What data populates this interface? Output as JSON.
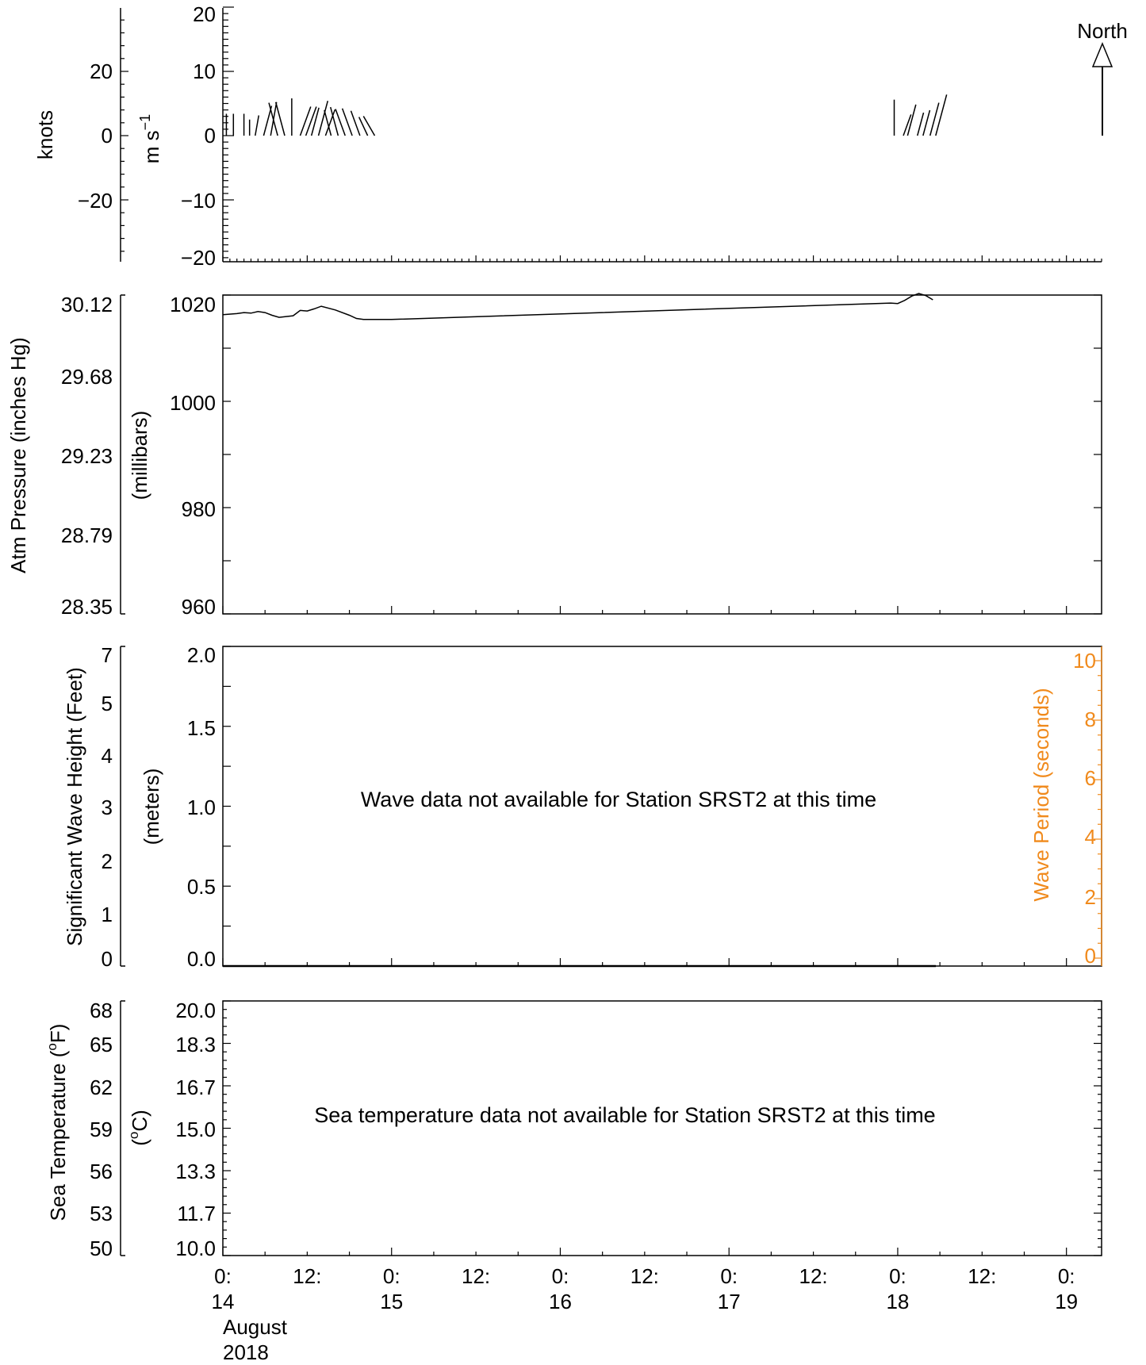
{
  "colors": {
    "wave_period": "#f08a1c",
    "ink": "#000000",
    "background": "#ffffff"
  },
  "time_axis": {
    "tick_labels": [
      {
        "hour": "0:",
        "day": "14"
      },
      {
        "hour": "12:",
        "day": ""
      },
      {
        "hour": "0:",
        "day": "15"
      },
      {
        "hour": "12:",
        "day": ""
      },
      {
        "hour": "0:",
        "day": "16"
      },
      {
        "hour": "12:",
        "day": ""
      },
      {
        "hour": "0:",
        "day": "17"
      },
      {
        "hour": "12:",
        "day": ""
      },
      {
        "hour": "0:",
        "day": "18"
      },
      {
        "hour": "12:",
        "day": ""
      },
      {
        "hour": "0:",
        "day": "19"
      }
    ],
    "month": "August",
    "year": "2018"
  },
  "chart_data": [
    {
      "type": "wind-barbs",
      "ylabel_left": "knots",
      "ylabel_right": "m s",
      "ylabel_right_exp": "−1",
      "yticks_knots": [
        "20",
        "0",
        "−20"
      ],
      "yticks_ms": [
        "20",
        "10",
        "0",
        "−10",
        "−20"
      ],
      "ylim_ms": [
        -20,
        20
      ],
      "xlim_hours": [
        0,
        125
      ],
      "north_label": "North",
      "samples": [
        {
          "t": 0.5,
          "speed": 3.4,
          "dir": 0
        },
        {
          "t": 1.5,
          "speed": 3.4,
          "dir": 0
        },
        {
          "t": 3.0,
          "speed": 3.4,
          "dir": 0
        },
        {
          "t": 3.8,
          "speed": 2.5,
          "dir": 0
        },
        {
          "t": 4.6,
          "speed": 3.2,
          "dir": 10
        },
        {
          "t": 5.8,
          "speed": 4.8,
          "dir": 15
        },
        {
          "t": 6.8,
          "speed": 5.3,
          "dir": 10
        },
        {
          "t": 7.8,
          "speed": 5.3,
          "dir": 345
        },
        {
          "t": 8.8,
          "speed": 5.4,
          "dir": 345
        },
        {
          "t": 9.8,
          "speed": 5.8,
          "dir": 0
        },
        {
          "t": 11.0,
          "speed": 4.8,
          "dir": 20
        },
        {
          "t": 11.8,
          "speed": 4.8,
          "dir": 20
        },
        {
          "t": 12.6,
          "speed": 4.5,
          "dir": 15
        },
        {
          "t": 13.6,
          "speed": 5.6,
          "dir": 15
        },
        {
          "t": 14.6,
          "speed": 4.3,
          "dir": 20
        },
        {
          "t": 15.4,
          "speed": 4.1,
          "dir": 345
        },
        {
          "t": 16.4,
          "speed": 4.6,
          "dir": 345
        },
        {
          "t": 17.4,
          "speed": 4.4,
          "dir": 340
        },
        {
          "t": 18.4,
          "speed": 4.5,
          "dir": 340
        },
        {
          "t": 19.5,
          "speed": 4.1,
          "dir": 340
        },
        {
          "t": 20.6,
          "speed": 3.2,
          "dir": 335
        },
        {
          "t": 21.6,
          "speed": 3.5,
          "dir": 330
        },
        {
          "t": 95.5,
          "speed": 5.6,
          "dir": 0
        },
        {
          "t": 96.8,
          "speed": 3.5,
          "dir": 20
        },
        {
          "t": 97.4,
          "speed": 5.0,
          "dir": 15
        },
        {
          "t": 98.8,
          "speed": 3.7,
          "dir": 15
        },
        {
          "t": 99.6,
          "speed": 4.1,
          "dir": 15
        },
        {
          "t": 100.6,
          "speed": 5.3,
          "dir": 15
        },
        {
          "t": 101.4,
          "speed": 6.6,
          "dir": 15
        }
      ]
    },
    {
      "type": "line",
      "ylabel_left": "Atm Pressure (inches Hg)",
      "ylabel_right": "(millibars)",
      "yticks_inhg": [
        "30.12",
        "29.68",
        "29.23",
        "28.79",
        "28.35"
      ],
      "yticks_mb": [
        "1020",
        "1000",
        "980",
        "960"
      ],
      "ylim_mb": [
        960,
        1020
      ],
      "xlim_hours": [
        0,
        125
      ],
      "x_hours": [
        0,
        2,
        3,
        4,
        5,
        6,
        7,
        8,
        10,
        11,
        12,
        13,
        14,
        16,
        18,
        19,
        20,
        21,
        22,
        23,
        24,
        95,
        96,
        97,
        98,
        99,
        100,
        101
      ],
      "values_mb": [
        1016.3,
        1016.5,
        1016.7,
        1016.6,
        1016.9,
        1016.7,
        1016.2,
        1015.8,
        1016.1,
        1017.1,
        1017.0,
        1017.4,
        1017.9,
        1017.2,
        1016.2,
        1015.6,
        1015.4,
        1015.4,
        1015.4,
        1015.4,
        1015.4,
        1018.5,
        1018.4,
        1019.0,
        1019.8,
        1020.3,
        1019.9,
        1019.1
      ]
    },
    {
      "type": "line",
      "ylabel_left": "Significant Wave Height (Feet)",
      "ylabel_right": "(meters)",
      "ylabel_period": "Wave Period (seconds)",
      "yticks_feet": [
        "7",
        "5",
        "4",
        "3",
        "2",
        "1",
        "0"
      ],
      "yticks_m": [
        "2.0",
        "1.5",
        "1.0",
        "0.5",
        "0.0"
      ],
      "yticks_s": [
        "10",
        "8",
        "6",
        "4",
        "2",
        "0"
      ],
      "ylim_m": [
        0,
        2
      ],
      "message": "Wave data not available for Station SRST2 at this time"
    },
    {
      "type": "line",
      "ylabel_left": "Sea Temperature (",
      "ylabel_left_deg": "o",
      "ylabel_left_unit": "F)",
      "ylabel_right_open": "(",
      "ylabel_right_deg": "o",
      "ylabel_right_unit": "C)",
      "yticks_f": [
        "68",
        "65",
        "62",
        "59",
        "56",
        "53",
        "50"
      ],
      "yticks_c": [
        "20.0",
        "18.3",
        "16.7",
        "15.0",
        "13.3",
        "11.7",
        "10.0"
      ],
      "ylim_c": [
        10,
        20
      ],
      "message": "Sea temperature data not available for Station SRST2 at this time"
    }
  ]
}
